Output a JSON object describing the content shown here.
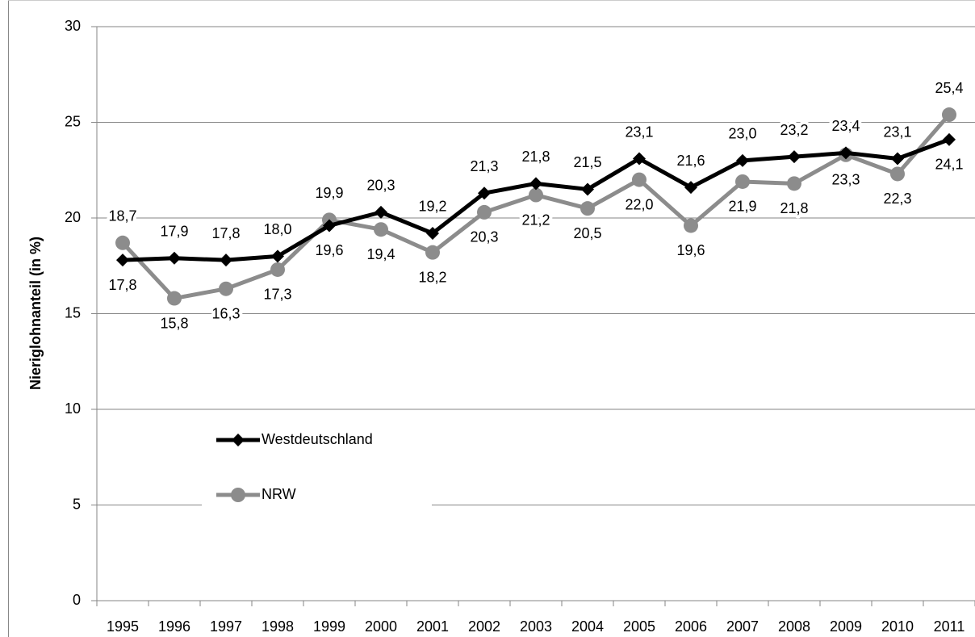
{
  "chart_data": {
    "type": "line",
    "y_label": "Nieriglohnanteil (in %)",
    "categories": [
      "1995",
      "1996",
      "1997",
      "1998",
      "1999",
      "2000",
      "2001",
      "2002",
      "2003",
      "2004",
      "2005",
      "2006",
      "2007",
      "2008",
      "2009",
      "2010",
      "2011"
    ],
    "ylim": [
      0,
      30
    ],
    "yticks": [
      0,
      5,
      10,
      15,
      20,
      25,
      30
    ],
    "grid": true,
    "series": [
      {
        "name": "Westdeutschland",
        "color": "#000000",
        "marker": "diamond",
        "values": [
          17.8,
          17.9,
          17.8,
          18.0,
          19.6,
          20.3,
          19.2,
          21.3,
          21.8,
          21.5,
          23.1,
          21.6,
          23.0,
          23.2,
          23.4,
          23.1,
          24.1
        ],
        "value_labels": [
          "17,8",
          "17,9",
          "17,8",
          "18,0",
          "19,6",
          "20,3",
          "19,2",
          "21,3",
          "21,8",
          "21,5",
          "23,1",
          "21,6",
          "23,0",
          "23,2",
          "23,4",
          "23,1",
          "24,1"
        ]
      },
      {
        "name": "NRW",
        "color": "#8c8c8c",
        "marker": "circle",
        "values": [
          18.7,
          15.8,
          16.3,
          17.3,
          19.9,
          19.4,
          18.2,
          20.3,
          21.2,
          20.5,
          22.0,
          19.6,
          21.9,
          21.8,
          23.3,
          22.3,
          25.4
        ],
        "value_labels": [
          "18,7",
          "15,8",
          "16,3",
          "17,3",
          "19,9",
          "19,4",
          "18,2",
          "20,3",
          "21,2",
          "20,5",
          "22,0",
          "19,6",
          "21,9",
          "21,8",
          "23,3",
          "22,3",
          "25,4"
        ]
      }
    ]
  }
}
